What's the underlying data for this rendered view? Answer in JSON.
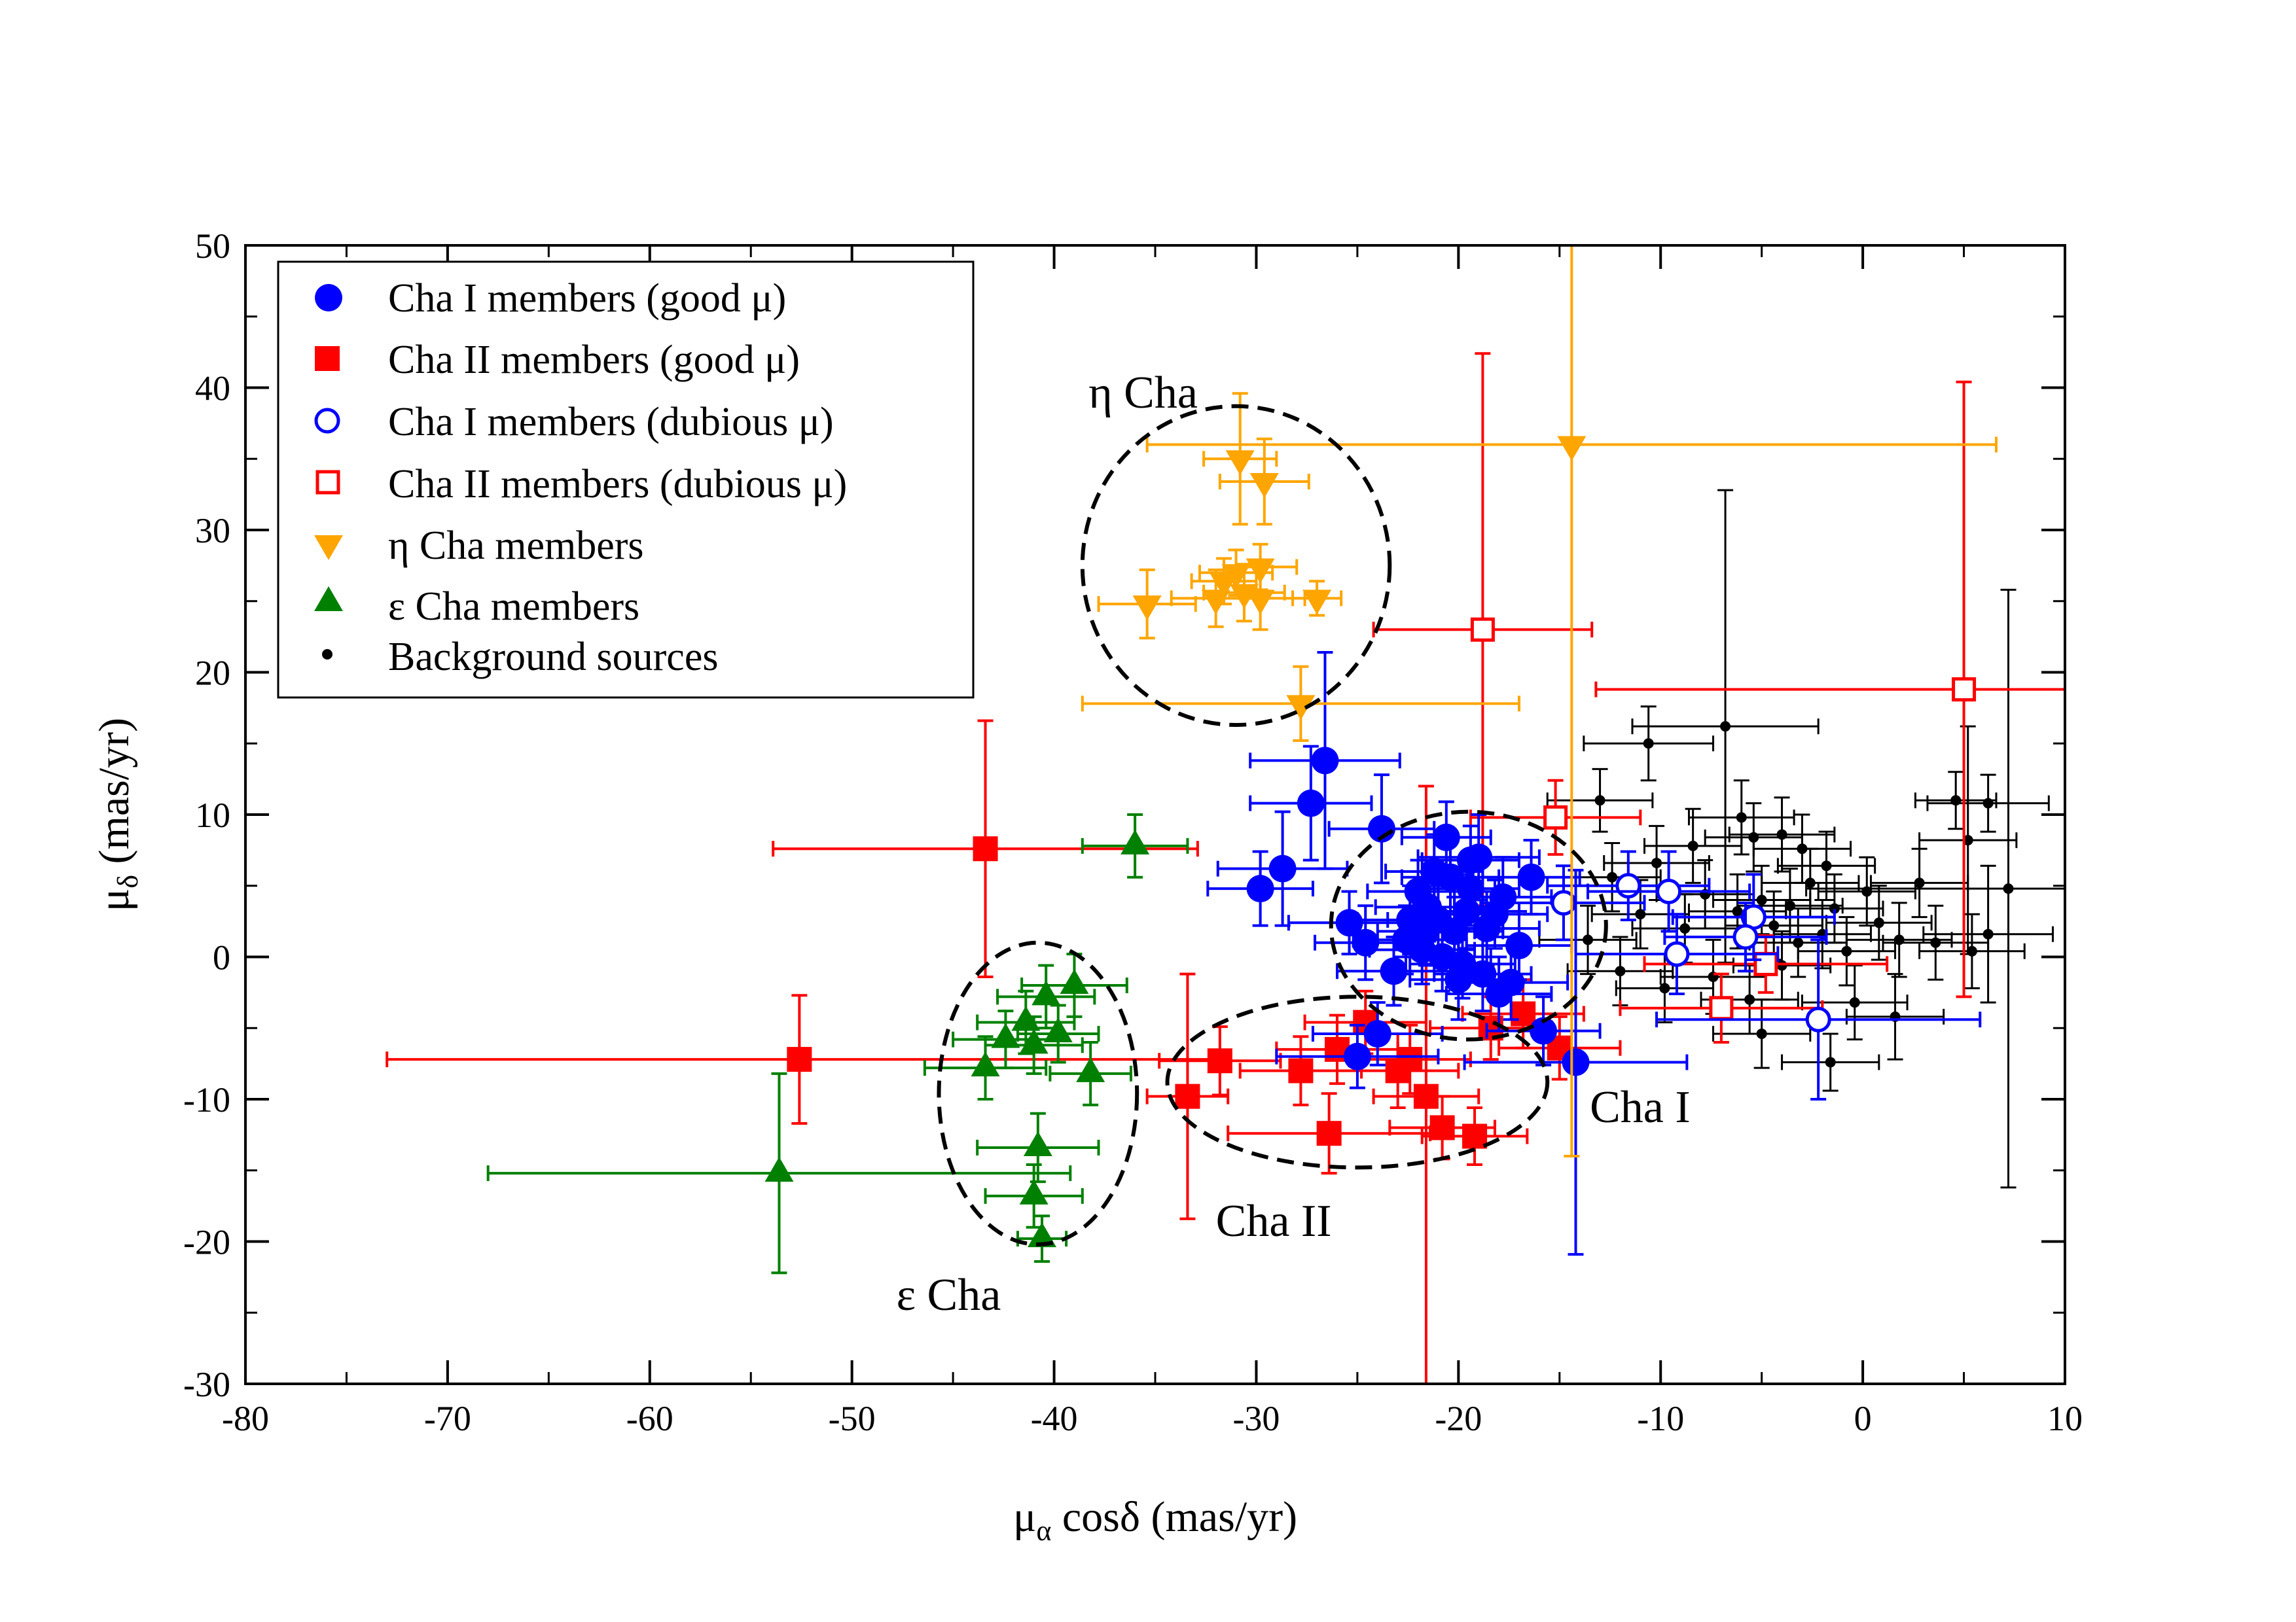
{
  "chart_data": {
    "type": "scatter",
    "title": "",
    "xlabel": {
      "main": "μ",
      "sub": "α",
      "rest": " cosδ (mas/yr)"
    },
    "ylabel": {
      "main": "μ",
      "sub": "δ",
      "rest": " (mas/yr)"
    },
    "xlim": [
      -80,
      10
    ],
    "ylim": [
      -30,
      50
    ],
    "xticks": [
      -80,
      -70,
      -60,
      -50,
      -40,
      -30,
      -20,
      -10,
      0,
      10
    ],
    "xtick_labels": [
      "-80",
      "-70",
      "-60",
      "-50",
      "-40",
      "-30",
      "-20",
      "-10",
      "0",
      "10"
    ],
    "yticks": [
      -30,
      -20,
      -10,
      0,
      10,
      20,
      30,
      40,
      50
    ],
    "ytick_labels": [
      "-30",
      "-20",
      "-10",
      "0",
      "10",
      "20",
      "30",
      "40",
      "50"
    ],
    "grid": false,
    "legend_position": "top-left",
    "colors": {
      "cha1": "#0000ff",
      "cha2": "#ff0000",
      "eta": "#ffa500",
      "eps": "#008000",
      "bg": "#000000"
    },
    "series": [
      {
        "name": "Cha I members (good μ)",
        "marker": "circle-filled",
        "color": "#0000ff",
        "points": [
          [
            -26.6,
            13.8,
            3.7,
            7.6
          ],
          [
            -27.3,
            10.8,
            3.0,
            4.0
          ],
          [
            -28.7,
            6.2,
            3.2,
            4.0
          ],
          [
            -29.8,
            4.8,
            2.6,
            2.6
          ],
          [
            -23.8,
            9.0,
            2.6,
            3.8
          ],
          [
            -20.6,
            8.4,
            2.2,
            2.5
          ],
          [
            -19.0,
            7.0,
            3.0,
            3.0
          ],
          [
            -16.4,
            5.6,
            2.4,
            2.6
          ],
          [
            -25.4,
            2.4,
            3.0,
            2.2
          ],
          [
            -22.0,
            4.6,
            2.5,
            2.2
          ],
          [
            -21.5,
            3.5,
            2.6,
            2.4
          ],
          [
            -21.0,
            2.6,
            2.5,
            2.4
          ],
          [
            -20.2,
            1.8,
            2.4,
            2.4
          ],
          [
            -19.6,
            3.2,
            2.6,
            2.6
          ],
          [
            -18.6,
            2.0,
            2.6,
            2.6
          ],
          [
            -17.8,
            4.2,
            2.4,
            2.8
          ],
          [
            -22.6,
            1.2,
            2.6,
            2.4
          ],
          [
            -21.8,
            0.5,
            2.6,
            2.4
          ],
          [
            -20.8,
            0.0,
            2.4,
            2.4
          ],
          [
            -19.8,
            -0.5,
            2.6,
            2.4
          ],
          [
            -18.8,
            -1.2,
            2.4,
            2.6
          ],
          [
            -17.4,
            -1.8,
            2.8,
            2.6
          ],
          [
            -23.2,
            -1.0,
            2.8,
            2.4
          ],
          [
            -24.6,
            1.0,
            2.5,
            2.6
          ],
          [
            -20.4,
            5.6,
            2.4,
            2.6
          ],
          [
            -19.4,
            4.8,
            2.4,
            2.6
          ],
          [
            -18.2,
            3.0,
            2.6,
            2.4
          ],
          [
            -21.2,
            6.0,
            2.4,
            2.6
          ],
          [
            -22.4,
            2.6,
            2.6,
            2.4
          ],
          [
            -17.0,
            0.8,
            2.6,
            2.4
          ],
          [
            -18.0,
            -2.6,
            2.6,
            2.6
          ],
          [
            -20.0,
            -1.6,
            2.4,
            2.8
          ],
          [
            -24.0,
            -5.4,
            3.2,
            2.2
          ],
          [
            -25.0,
            -7.0,
            4.0,
            2.2
          ],
          [
            -15.8,
            -5.2,
            2.8,
            2.4
          ],
          [
            -14.2,
            -7.4,
            5.5,
            13.5
          ],
          [
            -19.4,
            6.8,
            2.4,
            2.4
          ],
          [
            -21.6,
            1.8,
            2.4,
            2.4
          ]
        ]
      },
      {
        "name": "Cha II members (good μ)",
        "marker": "square-filled",
        "color": "#ff0000",
        "points": [
          [
            -43.4,
            7.6,
            10.5,
            9.0
          ],
          [
            -52.6,
            -7.2,
            20.4,
            4.5
          ],
          [
            -33.4,
            -9.8,
            2.0,
            8.6
          ],
          [
            -31.8,
            -7.3,
            3.0,
            2.4
          ],
          [
            -27.8,
            -8.0,
            3.0,
            2.4
          ],
          [
            -26.4,
            -12.4,
            5.0,
            2.8
          ],
          [
            -23.0,
            -8.0,
            3.0,
            2.6
          ],
          [
            -21.6,
            -9.8,
            2.6,
            21.8
          ],
          [
            -20.8,
            -12.0,
            2.6,
            2.2
          ],
          [
            -19.2,
            -12.6,
            2.6,
            2.0
          ],
          [
            -26.0,
            -6.5,
            3.0,
            2.4
          ],
          [
            -24.6,
            -4.6,
            3.0,
            2.2
          ],
          [
            -16.8,
            -4.0,
            3.0,
            2.4
          ],
          [
            -15.0,
            -6.4,
            3.0,
            2.2
          ],
          [
            -22.4,
            -7.2,
            3.0,
            2.4
          ],
          [
            -18.4,
            -5.0,
            3.0,
            2.2
          ]
        ]
      },
      {
        "name": "Cha I members (dubious  μ)",
        "marker": "circle-open",
        "color": "#0000ff",
        "points": [
          [
            -11.6,
            5.0,
            4.0,
            2.4
          ],
          [
            -9.6,
            4.6,
            4.0,
            2.8
          ],
          [
            -14.8,
            3.8,
            4.0,
            2.6
          ],
          [
            -5.4,
            2.8,
            4.0,
            3.0
          ],
          [
            -9.2,
            0.2,
            5.0,
            2.8
          ],
          [
            -2.2,
            -4.4,
            8.0,
            5.6
          ],
          [
            -5.8,
            1.4,
            4.0,
            2.4
          ]
        ]
      },
      {
        "name": "Cha II members (dubious μ)",
        "marker": "square-open",
        "color": "#ff0000",
        "points": [
          [
            -18.8,
            23.0,
            5.4,
            19.4
          ],
          [
            5.0,
            18.8,
            18.2,
            21.6
          ],
          [
            -15.2,
            9.8,
            4.2,
            2.6
          ],
          [
            -7.0,
            -3.6,
            5.0,
            2.4
          ],
          [
            -4.8,
            -0.5,
            6.0,
            2.0
          ]
        ]
      },
      {
        "name": "η Cha members",
        "marker": "triangle-down-filled",
        "color": "#ffa500",
        "points": [
          [
            -30.8,
            35.0,
            1.8,
            4.6
          ],
          [
            -29.6,
            33.4,
            2.2,
            3.0
          ],
          [
            -31.0,
            27.0,
            1.8,
            1.6
          ],
          [
            -29.8,
            27.4,
            1.8,
            1.6
          ],
          [
            -31.6,
            26.4,
            1.6,
            1.6
          ],
          [
            -30.6,
            25.6,
            2.0,
            2.0
          ],
          [
            -29.8,
            25.2,
            2.2,
            2.2
          ],
          [
            -32.0,
            25.2,
            2.2,
            2.0
          ],
          [
            -35.4,
            24.8,
            2.4,
            2.4
          ],
          [
            -27.0,
            25.2,
            1.2,
            1.2
          ],
          [
            -27.8,
            17.8,
            10.8,
            2.6
          ],
          [
            -14.4,
            36.0,
            21.0,
            50.0
          ]
        ]
      },
      {
        "name": "ε Cha members",
        "marker": "triangle-up-filled",
        "color": "#008000",
        "points": [
          [
            -36.0,
            7.8,
            2.6,
            2.2
          ],
          [
            -53.6,
            -15.2,
            14.4,
            7.0
          ],
          [
            -43.4,
            -7.8,
            3.0,
            2.2
          ],
          [
            -40.8,
            -13.4,
            3.0,
            2.4
          ],
          [
            -41.0,
            -16.8,
            2.4,
            2.2
          ],
          [
            -40.6,
            -19.8,
            1.2,
            1.6
          ],
          [
            -38.2,
            -8.2,
            2.0,
            2.2
          ],
          [
            -39.0,
            -2.0,
            2.6,
            2.2
          ],
          [
            -40.4,
            -2.8,
            2.4,
            2.2
          ],
          [
            -41.4,
            -4.6,
            2.4,
            2.2
          ],
          [
            -42.4,
            -5.8,
            2.6,
            2.0
          ],
          [
            -41.0,
            -6.2,
            2.4,
            2.0
          ],
          [
            -39.8,
            -5.4,
            2.0,
            2.0
          ]
        ]
      },
      {
        "name": "Background sources",
        "marker": "dot",
        "color": "#000000",
        "points": [
          [
            -6.8,
            16.2,
            4.6,
            16.6
          ],
          [
            -10.6,
            15.0,
            3.2,
            2.6
          ],
          [
            -13.0,
            11.0,
            2.6,
            2.2
          ],
          [
            4.6,
            11.0,
            2.0,
            2.0
          ],
          [
            6.2,
            10.8,
            3.0,
            2.0
          ],
          [
            7.2,
            4.8,
            10.0,
            21.0
          ],
          [
            -6.0,
            9.8,
            2.6,
            2.6
          ],
          [
            -5.4,
            8.4,
            2.4,
            2.4
          ],
          [
            -4.0,
            8.6,
            2.6,
            2.6
          ],
          [
            -3.0,
            7.6,
            2.4,
            2.4
          ],
          [
            -8.4,
            7.8,
            2.4,
            2.6
          ],
          [
            -10.2,
            6.6,
            2.6,
            2.6
          ],
          [
            -12.4,
            5.6,
            2.4,
            2.4
          ],
          [
            -7.8,
            4.4,
            2.4,
            2.4
          ],
          [
            -6.2,
            3.2,
            2.4,
            2.6
          ],
          [
            -4.4,
            2.2,
            2.4,
            2.4
          ],
          [
            -2.6,
            5.2,
            2.4,
            2.4
          ],
          [
            -1.4,
            3.4,
            2.4,
            2.4
          ],
          [
            0.2,
            4.6,
            2.4,
            2.4
          ],
          [
            0.8,
            2.4,
            2.6,
            2.6
          ],
          [
            1.8,
            1.2,
            2.6,
            2.6
          ],
          [
            -0.8,
            0.4,
            2.4,
            2.4
          ],
          [
            -2.0,
            1.6,
            2.4,
            2.4
          ],
          [
            -3.6,
            3.6,
            2.6,
            2.6
          ],
          [
            -5.0,
            4.0,
            2.4,
            2.4
          ],
          [
            -8.8,
            2.0,
            2.6,
            2.4
          ],
          [
            -11.0,
            3.0,
            2.4,
            2.4
          ],
          [
            -13.6,
            1.2,
            2.4,
            2.4
          ],
          [
            -12.0,
            -1.0,
            2.6,
            2.4
          ],
          [
            -9.8,
            -2.2,
            2.4,
            2.4
          ],
          [
            -7.4,
            -1.4,
            2.6,
            2.6
          ],
          [
            -5.6,
            -3.0,
            2.4,
            2.4
          ],
          [
            -5.0,
            -5.4,
            2.4,
            2.4
          ],
          [
            -1.6,
            -7.4,
            2.4,
            2.0
          ],
          [
            -0.4,
            -3.2,
            2.6,
            2.6
          ],
          [
            1.6,
            -4.2,
            2.4,
            3.0
          ],
          [
            3.6,
            1.0,
            2.6,
            2.6
          ],
          [
            5.4,
            0.4,
            2.6,
            2.6
          ],
          [
            6.2,
            1.6,
            3.2,
            4.8
          ],
          [
            5.2,
            8.2,
            2.4,
            8.0
          ],
          [
            2.8,
            5.2,
            2.4,
            2.4
          ],
          [
            -1.8,
            6.4,
            2.4,
            2.4
          ],
          [
            -3.2,
            1.0,
            2.4,
            2.4
          ],
          [
            -4.0,
            -0.6,
            2.4,
            2.4
          ]
        ]
      }
    ],
    "ellipses": [
      {
        "name": "eta-cha-region",
        "cx": -31.0,
        "cy": 27.5,
        "rx": 7.6,
        "ry": 11.2
      },
      {
        "name": "cha-i-region",
        "cx": -19.5,
        "cy": 2.2,
        "rx": 6.8,
        "ry": 8.0
      },
      {
        "name": "cha-ii-region",
        "cx": -25.0,
        "cy": -8.8,
        "rx": 9.4,
        "ry": 6.0
      },
      {
        "name": "eps-cha-region",
        "cx": -40.8,
        "cy": -9.6,
        "rx": 4.9,
        "ry": 10.6
      }
    ],
    "annotations": [
      {
        "name": "label-eta-cha",
        "text": "η Cha",
        "x": -38.3,
        "y": 38.6
      },
      {
        "name": "label-cha-i",
        "text": "Cha I",
        "x": -13.5,
        "y": -11.6
      },
      {
        "name": "label-cha-ii",
        "text": "Cha II",
        "x": -32.0,
        "y": -19.6
      },
      {
        "name": "label-eps-cha",
        "text": "ε Cha",
        "x": -47.8,
        "y": -24.8
      }
    ]
  }
}
